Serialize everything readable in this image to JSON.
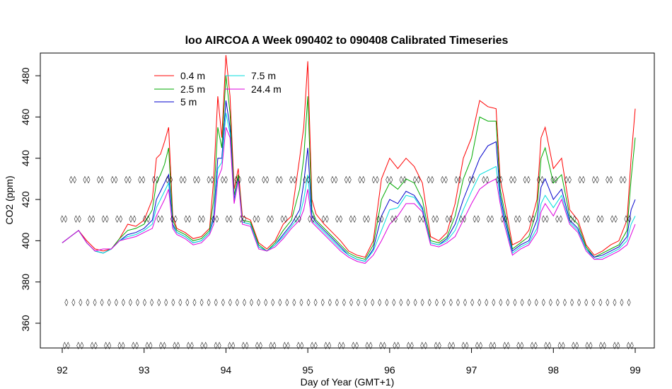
{
  "chart_data": {
    "type": "line",
    "title": "loo AIRCOA A  Week 090402 to 090408  Calibrated Timeseries",
    "xlabel": "Day of Year (GMT+1)",
    "ylabel": "CO2 (ppm)",
    "xlim": [
      92,
      99
    ],
    "ylim": [
      348,
      491
    ],
    "xticks": [
      92,
      93,
      94,
      95,
      96,
      97,
      98,
      99
    ],
    "yticks": [
      360,
      380,
      400,
      420,
      440,
      460,
      480
    ],
    "legend_position": "top-left",
    "x": [
      92.0,
      92.1,
      92.2,
      92.3,
      92.4,
      92.5,
      92.6,
      92.7,
      92.8,
      92.9,
      93.0,
      93.1,
      93.15,
      93.2,
      93.25,
      93.3,
      93.35,
      93.4,
      93.5,
      93.6,
      93.7,
      93.8,
      93.85,
      93.9,
      93.95,
      94.0,
      94.05,
      94.1,
      94.15,
      94.2,
      94.3,
      94.4,
      94.5,
      94.6,
      94.7,
      94.8,
      94.9,
      94.95,
      95.0,
      95.05,
      95.1,
      95.2,
      95.3,
      95.4,
      95.5,
      95.6,
      95.7,
      95.8,
      95.9,
      96.0,
      96.1,
      96.2,
      96.3,
      96.4,
      96.5,
      96.6,
      96.7,
      96.8,
      96.9,
      97.0,
      97.1,
      97.2,
      97.3,
      97.35,
      97.4,
      97.5,
      97.6,
      97.7,
      97.8,
      97.85,
      97.9,
      98.0,
      98.1,
      98.2,
      98.3,
      98.4,
      98.5,
      98.6,
      98.7,
      98.8,
      98.9,
      98.95,
      99.0
    ],
    "series": [
      {
        "name": "0.4 m",
        "color": "#ff0000",
        "values": [
          399,
          402,
          405,
          400,
          396,
          395,
          396,
          401,
          408,
          407,
          410,
          420,
          440,
          442,
          448,
          455,
          412,
          406,
          404,
          401,
          402,
          406,
          430,
          470,
          450,
          490,
          470,
          425,
          435,
          412,
          410,
          399,
          396,
          400,
          408,
          412,
          440,
          455,
          487,
          420,
          413,
          408,
          404,
          400,
          395,
          393,
          392,
          400,
          430,
          440,
          435,
          440,
          436,
          428,
          402,
          400,
          404,
          418,
          440,
          450,
          468,
          465,
          464,
          430,
          420,
          398,
          400,
          405,
          420,
          450,
          455,
          435,
          440,
          415,
          410,
          398,
          393,
          395,
          398,
          400,
          410,
          440,
          464
        ]
      },
      {
        "name": "2.5 m",
        "color": "#00aa00",
        "values": [
          399,
          402,
          405,
          399,
          395,
          394,
          396,
          401,
          405,
          406,
          408,
          415,
          428,
          432,
          437,
          445,
          410,
          405,
          403,
          400,
          401,
          405,
          420,
          455,
          445,
          480,
          462,
          422,
          432,
          410,
          409,
          398,
          395,
          399,
          405,
          410,
          425,
          440,
          470,
          415,
          410,
          406,
          402,
          398,
          394,
          392,
          391,
          398,
          420,
          428,
          425,
          430,
          428,
          420,
          400,
          399,
          402,
          412,
          430,
          440,
          460,
          458,
          458,
          425,
          415,
          396,
          399,
          402,
          415,
          440,
          445,
          428,
          432,
          412,
          408,
          397,
          392,
          394,
          396,
          398,
          405,
          430,
          450
        ]
      },
      {
        "name": "5 m",
        "color": "#0000cc",
        "values": [
          399,
          402,
          405,
          399,
          395,
          394,
          396,
          400,
          403,
          404,
          406,
          410,
          420,
          424,
          428,
          432,
          408,
          404,
          402,
          399,
          400,
          404,
          412,
          440,
          440,
          468,
          455,
          420,
          430,
          409,
          408,
          397,
          395,
          398,
          403,
          408,
          415,
          428,
          445,
          412,
          409,
          405,
          401,
          397,
          393,
          391,
          390,
          396,
          412,
          420,
          418,
          424,
          422,
          416,
          399,
          398,
          401,
          408,
          420,
          430,
          440,
          446,
          448,
          422,
          412,
          395,
          398,
          400,
          410,
          426,
          430,
          420,
          425,
          410,
          406,
          396,
          392,
          393,
          395,
          397,
          402,
          415,
          420
        ]
      },
      {
        "name": "7.5 m",
        "color": "#00dddd",
        "values": [
          399,
          402,
          405,
          399,
          395,
          394,
          396,
          400,
          402,
          403,
          405,
          408,
          416,
          420,
          424,
          428,
          407,
          404,
          402,
          399,
          400,
          404,
          410,
          435,
          438,
          462,
          452,
          419,
          430,
          409,
          408,
          397,
          395,
          398,
          402,
          407,
          412,
          420,
          432,
          410,
          408,
          404,
          400,
          396,
          393,
          391,
          390,
          395,
          405,
          415,
          416,
          422,
          421,
          415,
          399,
          398,
          400,
          405,
          415,
          424,
          432,
          434,
          436,
          420,
          410,
          394,
          397,
          399,
          406,
          418,
          422,
          416,
          422,
          409,
          405,
          396,
          391,
          392,
          394,
          396,
          400,
          408,
          412
        ]
      },
      {
        "name": "24.4 m",
        "color": "#dd00dd",
        "values": [
          399,
          402,
          405,
          399,
          395,
          396,
          396,
          400,
          401,
          402,
          404,
          406,
          412,
          416,
          420,
          425,
          406,
          403,
          401,
          398,
          399,
          403,
          408,
          430,
          435,
          455,
          450,
          418,
          429,
          408,
          407,
          396,
          395,
          397,
          401,
          406,
          410,
          415,
          425,
          409,
          407,
          403,
          399,
          395,
          392,
          390,
          389,
          393,
          400,
          408,
          412,
          418,
          418,
          414,
          398,
          397,
          399,
          402,
          410,
          418,
          425,
          428,
          430,
          418,
          408,
          393,
          396,
          398,
          404,
          414,
          418,
          412,
          420,
          408,
          404,
          395,
          391,
          391,
          393,
          395,
          398,
          403,
          408
        ]
      }
    ],
    "flag_rows": [
      {
        "y": 430,
        "start": 92.13,
        "step": 0.168,
        "symbol": "◊◊"
      },
      {
        "y": 411,
        "start": 92.02,
        "step": 0.168,
        "symbol": "◊◊"
      },
      {
        "y": 370.5,
        "start": 92.05,
        "step": 0.087,
        "symbol": "◊"
      },
      {
        "y": 349.5,
        "start": 92.05,
        "step": 0.168,
        "symbol": "◊◊"
      }
    ]
  }
}
